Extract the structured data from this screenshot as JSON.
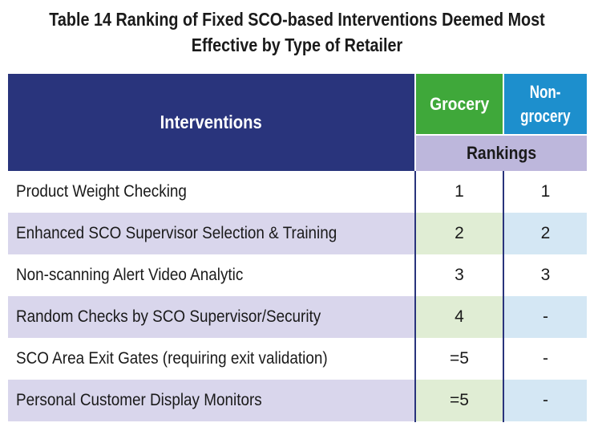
{
  "title": {
    "line1": "Table 14 Ranking of Fixed SCO-based Interventions Deemed Most",
    "line2": "Effective by Type of Retailer"
  },
  "headers": {
    "interventions": "Interventions",
    "grocery": "Grocery",
    "non_grocery_line1": "Non-",
    "non_grocery_line2": "grocery",
    "rankings": "Rankings"
  },
  "colors": {
    "header_navy": "#29347c",
    "grocery_green": "#3fa83a",
    "non_grocery_blue": "#1d8fcd",
    "rankings_lavender": "#bdb7dc"
  },
  "rows": [
    {
      "intervention": "Product Weight Checking",
      "grocery": "1",
      "non_grocery": "1"
    },
    {
      "intervention": "Enhanced SCO Supervisor Selection & Training",
      "grocery": "2",
      "non_grocery": "2"
    },
    {
      "intervention": "Non-scanning Alert Video Analytic",
      "grocery": "3",
      "non_grocery": "3"
    },
    {
      "intervention": "Random Checks by SCO Supervisor/Security",
      "grocery": "4",
      "non_grocery": "-"
    },
    {
      "intervention": "SCO Area Exit Gates (requiring exit validation)",
      "grocery": "=5",
      "non_grocery": "-"
    },
    {
      "intervention": "Personal Customer Display Monitors",
      "grocery": "=5",
      "non_grocery": "-"
    }
  ]
}
